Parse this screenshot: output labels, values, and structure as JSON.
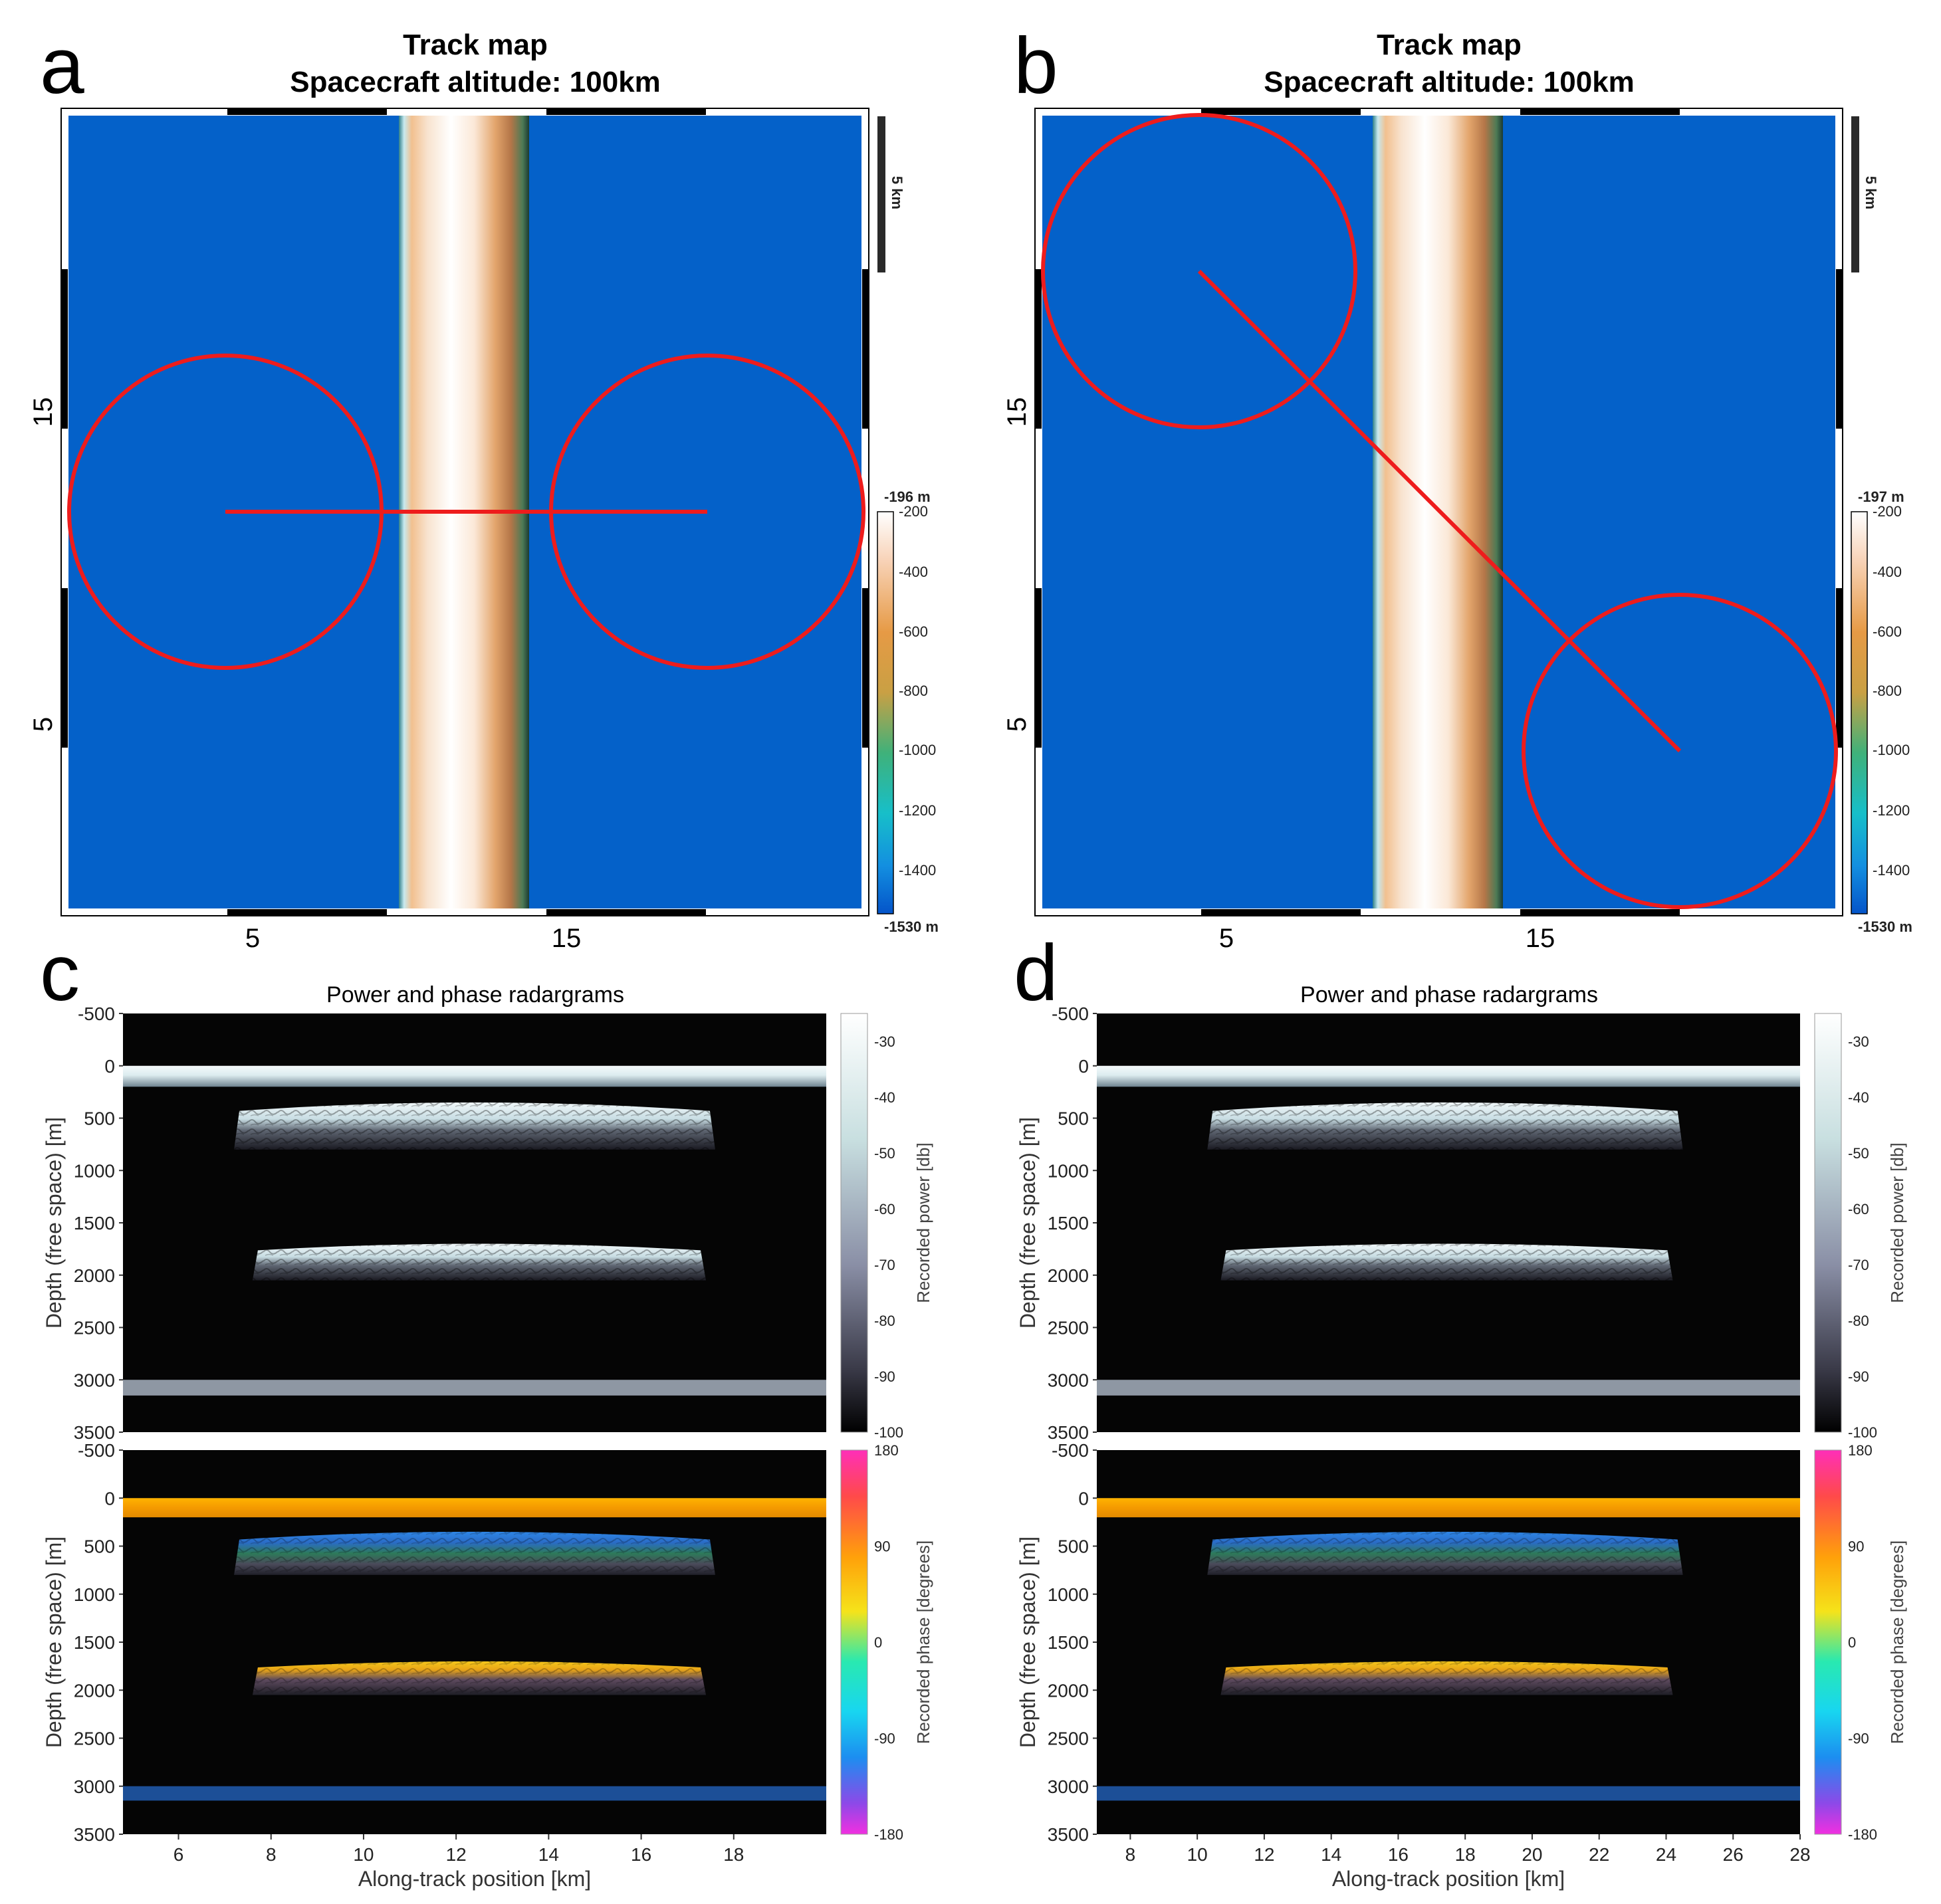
{
  "chart_data": [
    {
      "panel": "a",
      "type": "track-map",
      "title": "Track map",
      "subtitle": "Spacecraft altitude: 100km",
      "xticks": [
        "5",
        "15"
      ],
      "yticks": [
        "15",
        "5"
      ],
      "xlim": [
        0,
        25
      ],
      "ylim": [
        0,
        25
      ],
      "scale_bar_label": "5 km",
      "track": {
        "start": [
          5,
          12.5
        ],
        "end": [
          20,
          12.5
        ]
      },
      "footprints": [
        {
          "center": [
            5,
            12.5
          ],
          "radius": 4.9
        },
        {
          "center": [
            20,
            12.5
          ],
          "radius": 4.9
        }
      ],
      "colorbar": {
        "max_label": "-196 m",
        "min_label": "-1530 m",
        "ticks": [
          "-200",
          "-400",
          "-600",
          "-800",
          "-1000",
          "-1200",
          "-1400"
        ]
      }
    },
    {
      "panel": "b",
      "type": "track-map",
      "title": "Track map",
      "subtitle": "Spacecraft altitude: 100km",
      "xticks": [
        "5",
        "15"
      ],
      "yticks": [
        "15",
        "5"
      ],
      "xlim": [
        0,
        25
      ],
      "ylim": [
        0,
        25
      ],
      "scale_bar_label": "5 km",
      "track": {
        "start": [
          5,
          20
        ],
        "end": [
          20,
          5
        ]
      },
      "footprints": [
        {
          "center": [
            5,
            20
          ],
          "radius": 4.9
        },
        {
          "center": [
            20,
            5
          ],
          "radius": 4.9
        }
      ],
      "colorbar": {
        "max_label": "-197 m",
        "min_label": "-1530 m",
        "ticks": [
          "-200",
          "-400",
          "-600",
          "-800",
          "-1000",
          "-1200",
          "-1400"
        ]
      }
    },
    {
      "panel": "c",
      "type": "heatmap",
      "title": "Power and phase radargrams",
      "xlabel": "Along-track position [km]",
      "ylabel": "Depth (free space) [m]",
      "xlim": [
        4.8,
        20
      ],
      "xticks": [
        "6",
        "8",
        "10",
        "12",
        "14",
        "16",
        "18"
      ],
      "ylim": [
        -500,
        3500
      ],
      "yticks": [
        "-500",
        "0",
        "500",
        "1000",
        "1500",
        "2000",
        "2500",
        "3000",
        "3500"
      ],
      "power_colorbar": {
        "label": "Recorded power [db]",
        "ticks": [
          "-30",
          "-40",
          "-50",
          "-60",
          "-70",
          "-80",
          "-90",
          "-100"
        ]
      },
      "phase_colorbar": {
        "label": "Recorded phase [degrees]",
        "ticks": [
          "180",
          "90",
          "0",
          "-90",
          "-180"
        ]
      },
      "reflectors": [
        {
          "name": "surface",
          "depth_top": 0,
          "depth_bottom": 200,
          "x_start": 4.8,
          "x_end": 20
        },
        {
          "name": "upper",
          "depth_top": 350,
          "depth_bottom": 800,
          "x_start": 7.2,
          "x_end": 17.6
        },
        {
          "name": "middle",
          "depth_top": 1700,
          "depth_bottom": 2050,
          "x_start": 7.6,
          "x_end": 17.4
        },
        {
          "name": "deep",
          "depth_top": 3000,
          "depth_bottom": 3150,
          "x_start": 4.8,
          "x_end": 20
        }
      ]
    },
    {
      "panel": "d",
      "type": "heatmap",
      "title": "Power and phase radargrams",
      "xlabel": "Along-track position [km]",
      "ylabel": "Depth (free space) [m]",
      "xlim": [
        7,
        28
      ],
      "xticks": [
        "8",
        "10",
        "12",
        "14",
        "16",
        "18",
        "20",
        "22",
        "24",
        "26",
        "28"
      ],
      "ylim": [
        -500,
        3500
      ],
      "yticks": [
        "-500",
        "0",
        "500",
        "1000",
        "1500",
        "2000",
        "2500",
        "3000",
        "3500"
      ],
      "power_colorbar": {
        "label": "Recorded power [db]",
        "ticks": [
          "-30",
          "-40",
          "-50",
          "-60",
          "-70",
          "-80",
          "-90",
          "-100"
        ]
      },
      "phase_colorbar": {
        "label": "Recorded phase [degrees]",
        "ticks": [
          "180",
          "90",
          "0",
          "-90",
          "-180"
        ]
      },
      "reflectors": [
        {
          "name": "surface",
          "depth_top": 0,
          "depth_bottom": 200,
          "x_start": 7,
          "x_end": 28
        },
        {
          "name": "upper",
          "depth_top": 350,
          "depth_bottom": 800,
          "x_start": 10.3,
          "x_end": 24.5
        },
        {
          "name": "middle",
          "depth_top": 1700,
          "depth_bottom": 2050,
          "x_start": 10.7,
          "x_end": 24.2
        },
        {
          "name": "deep",
          "depth_top": 3000,
          "depth_bottom": 3150,
          "x_start": 7,
          "x_end": 28
        }
      ]
    }
  ],
  "colors": {
    "map_blue": "#0461c9",
    "track_red": "#ee1c1c",
    "radar_bg": "#050505",
    "phase_surface": "#f5a000",
    "phase_upper": "#2f7bdc",
    "phase_middle": "#f1c21a",
    "phase_deep": "#1c4f97"
  }
}
